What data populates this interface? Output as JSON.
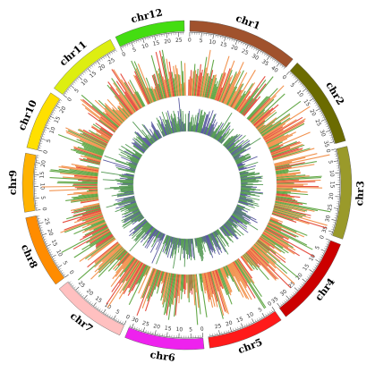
{
  "chart_data": {
    "type": "circos",
    "chromosomes": [
      {
        "name": "chr1",
        "length_mb": 43.3,
        "color": "#a0522d",
        "ticks": [
          0,
          5,
          10,
          15,
          20,
          25,
          30,
          35,
          40
        ]
      },
      {
        "name": "chr2",
        "length_mb": 35.9,
        "color": "#6b6b00",
        "ticks": [
          0,
          5,
          10,
          15,
          20,
          25,
          30,
          35
        ]
      },
      {
        "name": "chr3",
        "length_mb": 36.4,
        "color": "#9a9a2a",
        "ticks": [
          0,
          5,
          10,
          15,
          20,
          25,
          30,
          35
        ]
      },
      {
        "name": "chr4",
        "length_mb": 35.5,
        "color": "#cc0000",
        "ticks": [
          0,
          5,
          10,
          15,
          20,
          25,
          30,
          35
        ]
      },
      {
        "name": "chr5",
        "length_mb": 29.9,
        "color": "#ff1a1a",
        "ticks": [
          0,
          5,
          10,
          15,
          20,
          25
        ]
      },
      {
        "name": "chr6",
        "length_mb": 31.2,
        "color": "#ee22ee",
        "ticks": [
          0,
          5,
          10,
          15,
          20,
          25,
          30
        ]
      },
      {
        "name": "chr7",
        "length_mb": 29.7,
        "color": "#ffc0c0",
        "ticks": [
          0,
          5,
          10,
          15,
          20,
          25
        ]
      },
      {
        "name": "chr8",
        "length_mb": 28.4,
        "color": "#ff8c00",
        "ticks": [
          0,
          5,
          10,
          15,
          20,
          25
        ]
      },
      {
        "name": "chr9",
        "length_mb": 23.0,
        "color": "#ffb300",
        "ticks": [
          0,
          5,
          10,
          15,
          20
        ]
      },
      {
        "name": "chr10",
        "length_mb": 23.2,
        "color": "#ffe000",
        "ticks": [
          0,
          5,
          10,
          15,
          20
        ]
      },
      {
        "name": "chr11",
        "length_mb": 29.0,
        "color": "#ddee11",
        "ticks": [
          0,
          5,
          10,
          15,
          20,
          25
        ]
      },
      {
        "name": "chr12",
        "length_mb": 27.5,
        "color": "#44dd11",
        "ticks": [
          0,
          5,
          10,
          15,
          20,
          25
        ]
      }
    ],
    "tracks": [
      {
        "name": "outer histogram",
        "type": "histogram",
        "colors": [
          "#f08030",
          "#4a9a2a",
          "#e03020"
        ]
      },
      {
        "name": "inner histogram",
        "type": "histogram",
        "colors": [
          "#3a8a3a",
          "#404090"
        ]
      }
    ],
    "gap_mb": 2.2,
    "start_angle_deg": -90
  }
}
